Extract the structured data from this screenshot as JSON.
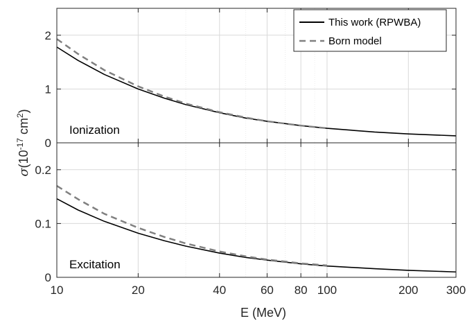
{
  "chart_data": {
    "type": "line",
    "xlabel": "E (MeV)",
    "ylabel": {
      "prefix": "(10",
      "exp1": "-17",
      "mid": " cm",
      "exp2": "2",
      "suffix": ")"
    },
    "x_scale": "log",
    "xlim": [
      10,
      300
    ],
    "x_ticks": [
      10,
      20,
      40,
      60,
      80,
      100,
      200,
      300
    ],
    "x_tick_labels": [
      "10",
      "20",
      "40",
      "60",
      "80",
      "100",
      "200",
      "300"
    ],
    "grid": true,
    "legend": {
      "position": "top-right",
      "entries": [
        "This work (RPWBA)",
        "Born model"
      ]
    },
    "panels": [
      {
        "label": "Ionization",
        "ylim": [
          0,
          2.5
        ],
        "y_ticks": [
          0,
          1,
          2
        ],
        "y_tick_labels": [
          "0",
          "1",
          "2"
        ],
        "series": [
          {
            "name": "This work (RPWBA)",
            "color": "#000000",
            "style": "solid",
            "x": [
              10,
              12,
              15,
              20,
              25,
              30,
              40,
              50,
              60,
              80,
              100,
              150,
              200,
              300
            ],
            "y": [
              1.78,
              1.53,
              1.27,
              1.0,
              0.83,
              0.71,
              0.56,
              0.46,
              0.4,
              0.32,
              0.27,
              0.2,
              0.165,
              0.13
            ]
          },
          {
            "name": "Born model",
            "color": "#808080",
            "style": "dashed",
            "x": [
              10,
              12,
              15,
              20,
              25,
              30,
              40,
              50,
              60,
              80,
              100
            ],
            "y": [
              1.93,
              1.65,
              1.35,
              1.05,
              0.86,
              0.73,
              0.57,
              0.47,
              0.4,
              0.32,
              0.27
            ]
          }
        ]
      },
      {
        "label": "Excitation",
        "ylim": [
          0,
          0.25
        ],
        "y_ticks": [
          0,
          0.1,
          0.2
        ],
        "y_tick_labels": [
          "0",
          "0.1",
          "0.2"
        ],
        "series": [
          {
            "name": "This work (RPWBA)",
            "color": "#000000",
            "style": "solid",
            "x": [
              10,
              12,
              15,
              20,
              25,
              30,
              40,
              50,
              60,
              80,
              100,
              150,
              200,
              300
            ],
            "y": [
              0.146,
              0.125,
              0.104,
              0.082,
              0.068,
              0.058,
              0.045,
              0.037,
              0.032,
              0.025,
              0.021,
              0.016,
              0.013,
              0.01
            ]
          },
          {
            "name": "Born model",
            "color": "#808080",
            "style": "dashed",
            "x": [
              10,
              12,
              15,
              20,
              25,
              30,
              40,
              50,
              60,
              80,
              100
            ],
            "y": [
              0.17,
              0.145,
              0.118,
              0.092,
              0.075,
              0.063,
              0.048,
              0.039,
              0.033,
              0.026,
              0.022
            ]
          }
        ]
      }
    ]
  }
}
